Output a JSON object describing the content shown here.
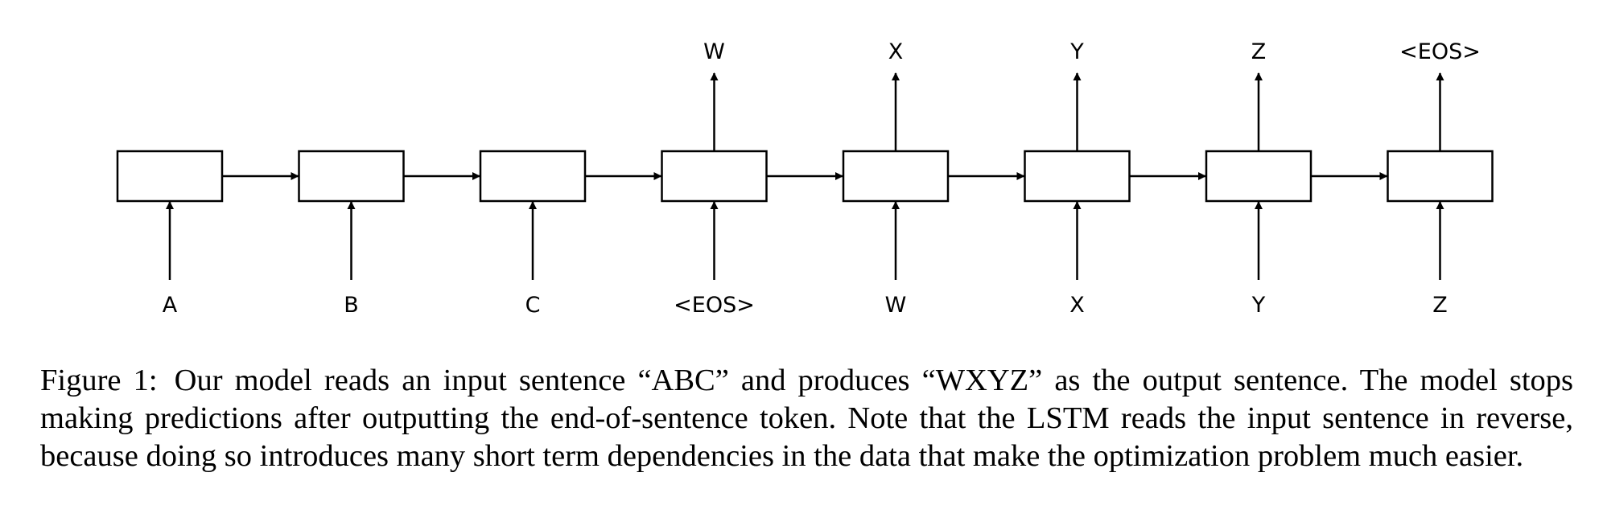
{
  "diagram": {
    "input_tokens": [
      "A",
      "B",
      "C",
      "<EOS>",
      "W",
      "X",
      "Y",
      "Z"
    ],
    "output_tokens": [
      "",
      "",
      "",
      "W",
      "X",
      "Y",
      "Z",
      "<EOS>"
    ]
  },
  "caption": {
    "label": "Figure 1:",
    "text": "Our model reads an input sentence “ABC” and produces “WXYZ” as the output sentence. The model stops making predictions after outputting the end-of-sentence token. Note that the LSTM reads the input sentence in reverse, because doing so introduces many short term dependencies in the data that make the optimization problem much easier."
  }
}
